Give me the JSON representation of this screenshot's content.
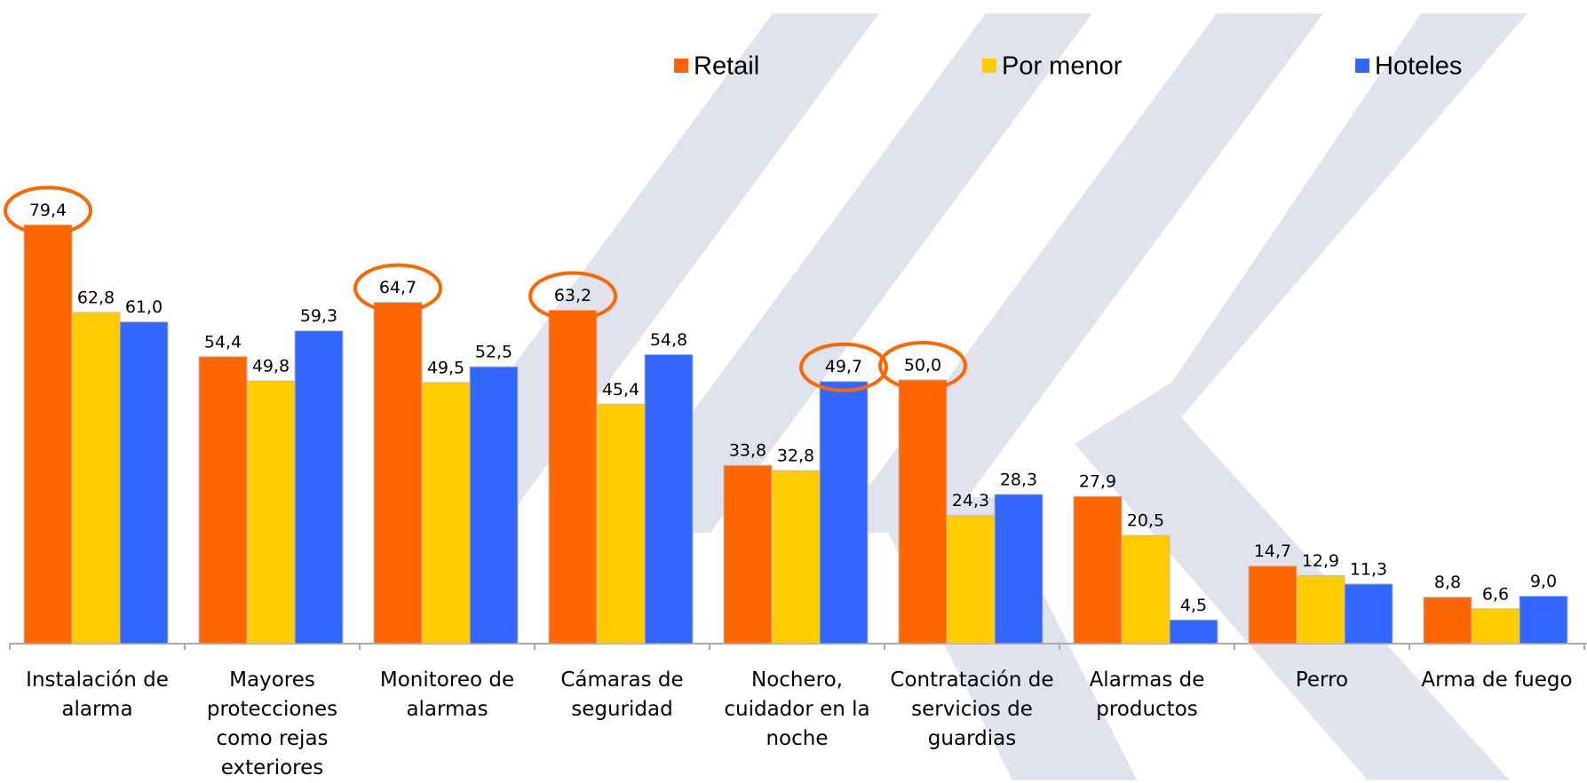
{
  "chart_data": {
    "type": "bar",
    "categories": [
      "Instalación de alarma",
      "Mayores protecciones como rejas exteriores",
      "Monitoreo de alarmas",
      "Cámaras de seguridad",
      "Nochero, cuidador en la noche",
      "Contratación de servicios de guardias",
      "Alarmas de productos",
      "Perro",
      "Arma de fuego"
    ],
    "series": [
      {
        "name": "Retail",
        "color": "#ff6600",
        "values": [
          79.4,
          54.4,
          64.7,
          63.2,
          33.8,
          50.0,
          27.9,
          14.7,
          8.8
        ],
        "value_labels": [
          "79,4",
          "54,4",
          "64,7",
          "63,2",
          "33,8",
          "50,0",
          "27,9",
          "14,7",
          "8,8"
        ]
      },
      {
        "name": "Por menor",
        "color": "#ffcc00",
        "values": [
          62.8,
          49.8,
          49.5,
          45.4,
          32.8,
          24.3,
          20.5,
          12.9,
          6.6
        ],
        "value_labels": [
          "62,8",
          "49,8",
          "49,5",
          "45,4",
          "32,8",
          "24,3",
          "20,5",
          "12,9",
          "6,6"
        ]
      },
      {
        "name": "Hoteles",
        "color": "#3366ff",
        "values": [
          61.0,
          59.3,
          52.5,
          54.8,
          49.7,
          28.3,
          4.5,
          11.3,
          9.0
        ],
        "value_labels": [
          "61,0",
          "59,3",
          "52,5",
          "54,8",
          "49,7",
          "28,3",
          "4,5",
          "11,3",
          "9,0"
        ]
      }
    ],
    "ylim": [
      0,
      85
    ]
  }
}
